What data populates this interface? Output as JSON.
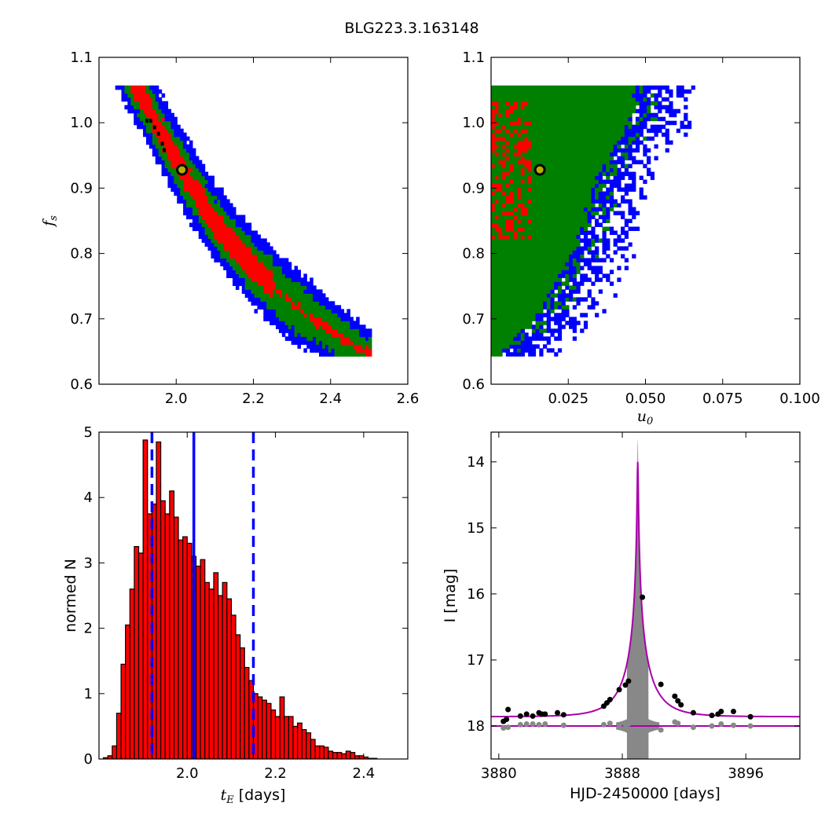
{
  "figure": {
    "suptitle": "BLG223.3.163148"
  },
  "chart_data": [
    {
      "id": "tE-fs",
      "type": "heatmap",
      "title": "",
      "xlabel": "",
      "ylabel_main": "f",
      "ylabel_sub": "s",
      "xlim": [
        1.8,
        2.6
      ],
      "ylim": [
        0.6,
        1.1
      ],
      "xticks": [
        2.0,
        2.2,
        2.4,
        2.6
      ],
      "xtick_labels": [
        "2.0",
        "2.2",
        "2.4",
        "2.6"
      ],
      "yticks": [
        0.6,
        0.7,
        0.8,
        0.9,
        1.0,
        1.1
      ],
      "ytick_labels": [
        "0.6",
        "0.7",
        "0.8",
        "0.9",
        "1.0",
        "1.1"
      ],
      "levels": [
        {
          "level": 4,
          "color": "#000000"
        },
        {
          "level": 3,
          "color": "#ff0000"
        },
        {
          "level": 2,
          "color": "#008000"
        },
        {
          "level": 1,
          "color": "#0000ff"
        }
      ],
      "band": {
        "ridge": [
          [
            1.9,
            1.05
          ],
          [
            2.0,
            0.94
          ],
          [
            2.1,
            0.845
          ],
          [
            2.2,
            0.775
          ],
          [
            2.3,
            0.72
          ],
          [
            2.4,
            0.68
          ],
          [
            2.5,
            0.645
          ]
        ],
        "x_range": [
          1.81,
          2.5
        ],
        "y_range": [
          0.643,
          1.055
        ],
        "widths": [
          0.058,
          0.038,
          0.02
        ],
        "black_cells": [
          [
            1.93,
            1.0
          ],
          [
            1.94,
            0.99
          ],
          [
            1.95,
            0.98
          ],
          [
            1.92,
            1.0
          ],
          [
            1.96,
            0.965
          ],
          [
            1.965,
            0.955
          ]
        ]
      },
      "best_fit": {
        "x": 2.015,
        "y": 0.928
      }
    },
    {
      "id": "u0-fs",
      "type": "heatmap",
      "title": "",
      "xlabel_main": "u",
      "xlabel_sub": "0",
      "ylabel": "",
      "xlim": [
        0.0,
        0.1
      ],
      "ylim": [
        0.6,
        1.1
      ],
      "xticks": [
        0.025,
        0.05,
        0.075,
        0.1
      ],
      "xtick_labels": [
        "0.025",
        "0.050",
        "0.075",
        "0.100"
      ],
      "yticks": [
        0.6,
        0.7,
        0.8,
        0.9,
        1.0,
        1.1
      ],
      "ytick_labels": [
        "0.6",
        "0.7",
        "0.8",
        "0.9",
        "1.0",
        "1.1"
      ],
      "green_edge": [
        [
          1.055,
          0.05
        ],
        [
          1.0,
          0.048
        ],
        [
          0.9,
          0.036
        ],
        [
          0.8,
          0.03
        ],
        [
          0.7,
          0.018
        ],
        [
          0.65,
          0.007
        ]
      ],
      "red_region": {
        "x_max": 0.012,
        "y_range": [
          0.82,
          1.03
        ]
      },
      "best_fit": {
        "x": 0.0158,
        "y": 0.928
      }
    },
    {
      "id": "tE-hist",
      "type": "bar",
      "title": "",
      "xlabel_main": "t",
      "xlabel_sub": "E",
      "xlabel_rest": " [days]",
      "ylabel": "normed N",
      "xlim": [
        1.8,
        2.5
      ],
      "ylim": [
        0,
        5
      ],
      "bin_start": 1.81,
      "bin_width": 0.01,
      "values": [
        0.02,
        0.05,
        0.2,
        0.7,
        1.45,
        2.05,
        2.6,
        3.25,
        3.15,
        4.88,
        3.75,
        3.9,
        4.85,
        3.95,
        3.75,
        4.1,
        3.7,
        3.35,
        3.4,
        3.3,
        3.1,
        2.95,
        3.05,
        2.7,
        2.6,
        2.85,
        2.5,
        2.7,
        2.45,
        2.2,
        1.9,
        1.7,
        1.4,
        1.2,
        1.0,
        0.95,
        0.9,
        0.85,
        0.75,
        0.65,
        0.95,
        0.65,
        0.65,
        0.5,
        0.55,
        0.45,
        0.4,
        0.3,
        0.2,
        0.2,
        0.18,
        0.12,
        0.1,
        0.1,
        0.08,
        0.12,
        0.1,
        0.05,
        0.05,
        0.03,
        0.01,
        0.01
      ],
      "bar_color": "#ff0000",
      "median": 2.015,
      "bounds": [
        1.92,
        2.15
      ],
      "xticks": [
        2.0,
        2.2,
        2.4
      ],
      "xtick_labels": [
        "2.0",
        "2.2",
        "2.4"
      ],
      "yticks": [
        0,
        1,
        2,
        3,
        4,
        5
      ],
      "ytick_labels": [
        "0",
        "1",
        "2",
        "3",
        "4",
        "5"
      ]
    },
    {
      "id": "lightcurve",
      "type": "scatter",
      "title": "",
      "xlabel": "HJD-2450000 [days]",
      "ylabel": "I [mag]",
      "xlim": [
        3879.5,
        3899.5
      ],
      "ylim": [
        18.5,
        13.55
      ],
      "y_inverted": true,
      "xticks": [
        3880,
        3888,
        3896
      ],
      "xtick_labels": [
        "3880",
        "3888",
        "3896"
      ],
      "yticks": [
        14,
        15,
        16,
        17,
        18
      ],
      "ytick_labels": [
        "14",
        "15",
        "16",
        "17",
        "18"
      ],
      "model": {
        "t0": 3889.0,
        "baseline": 17.86,
        "peak_mag": 14.0,
        "u0": 0.0158,
        "tE": 2.015,
        "color": "#aa00aa"
      },
      "baseline_line": 18.0,
      "points": [
        [
          3880.3,
          17.93
        ],
        [
          3880.5,
          17.9
        ],
        [
          3880.6,
          17.75
        ],
        [
          3881.4,
          17.85
        ],
        [
          3881.8,
          17.82
        ],
        [
          3882.2,
          17.85
        ],
        [
          3882.6,
          17.8
        ],
        [
          3882.8,
          17.82
        ],
        [
          3883.0,
          17.82
        ],
        [
          3883.8,
          17.8
        ],
        [
          3884.2,
          17.83
        ],
        [
          3886.8,
          17.7
        ],
        [
          3887.0,
          17.65
        ],
        [
          3887.2,
          17.6
        ],
        [
          3887.8,
          17.45
        ],
        [
          3888.2,
          17.38
        ],
        [
          3888.4,
          17.32
        ],
        [
          3889.3,
          16.05
        ],
        [
          3890.5,
          17.37
        ],
        [
          3891.4,
          17.55
        ],
        [
          3891.6,
          17.62
        ],
        [
          3891.8,
          17.68
        ],
        [
          3892.6,
          17.8
        ],
        [
          3893.8,
          17.84
        ],
        [
          3894.2,
          17.82
        ],
        [
          3894.4,
          17.78
        ],
        [
          3895.2,
          17.78
        ],
        [
          3896.3,
          17.86
        ]
      ],
      "residuals": [
        [
          3880.3,
          18.03
        ],
        [
          3880.6,
          18.02
        ],
        [
          3881.4,
          17.98
        ],
        [
          3881.8,
          17.97
        ],
        [
          3882.2,
          17.97
        ],
        [
          3882.6,
          17.98
        ],
        [
          3883.0,
          17.97
        ],
        [
          3884.2,
          17.99
        ],
        [
          3886.8,
          17.98
        ],
        [
          3887.2,
          17.96
        ],
        [
          3887.8,
          18.01
        ],
        [
          3888.2,
          17.98
        ],
        [
          3888.4,
          17.97
        ],
        [
          3890.5,
          18.06
        ],
        [
          3891.4,
          17.94
        ],
        [
          3891.6,
          17.96
        ],
        [
          3892.6,
          18.02
        ],
        [
          3893.8,
          18.0
        ],
        [
          3894.4,
          17.97
        ],
        [
          3895.2,
          17.99
        ],
        [
          3896.3,
          18.0
        ]
      ]
    }
  ]
}
